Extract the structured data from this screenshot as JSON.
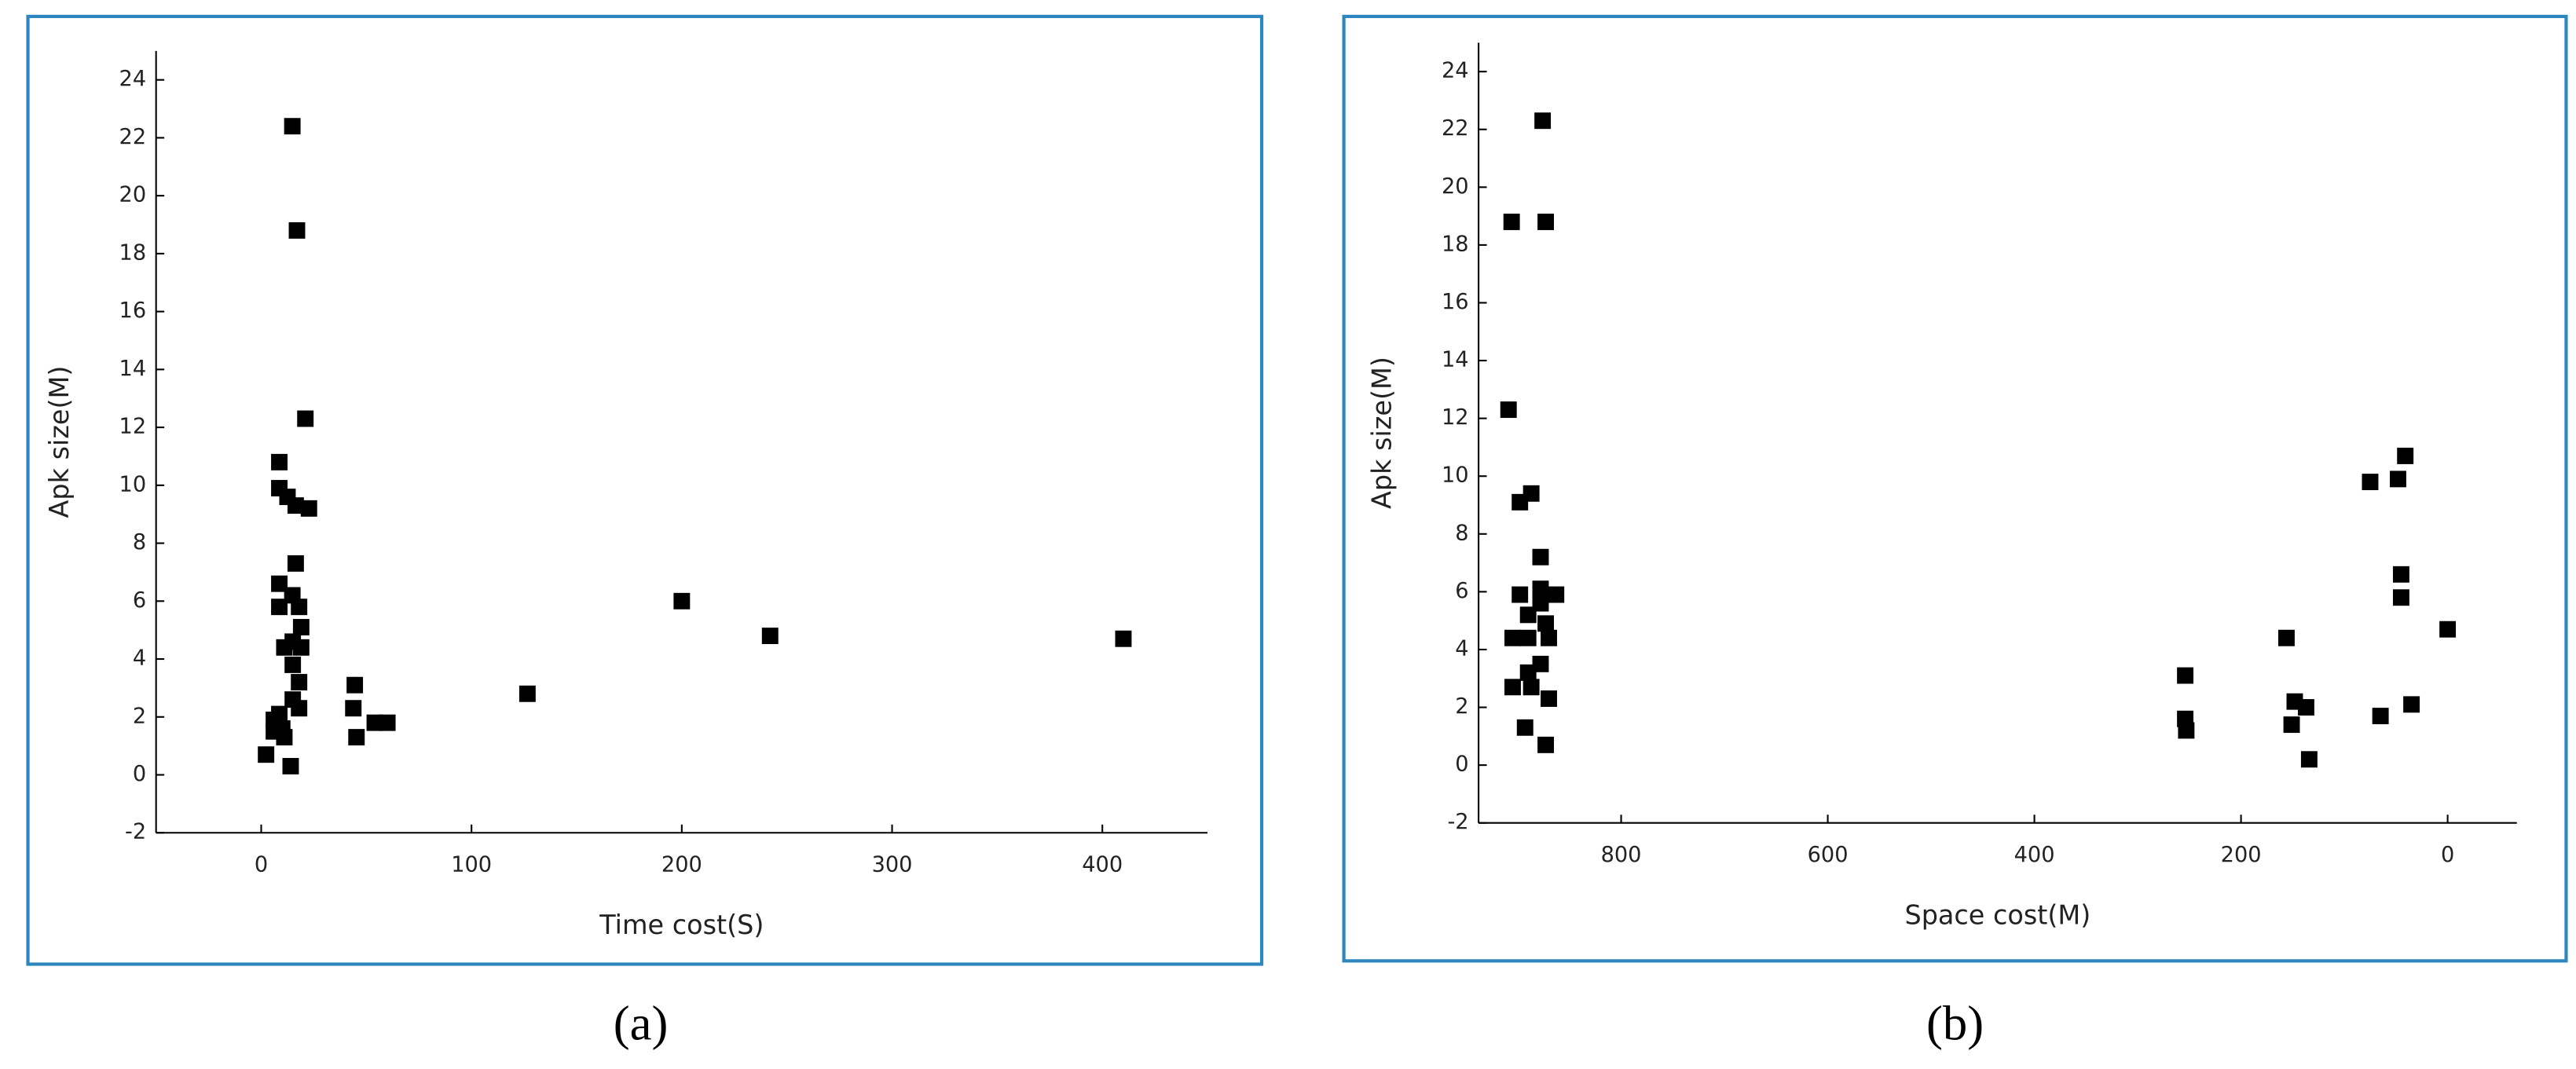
{
  "chart_data": [
    {
      "type": "scatter",
      "caption": "(a)",
      "x_label": "Time cost(S)",
      "y_label": "Apk size(M)",
      "color": "#000000",
      "x": [
        14.8,
        17,
        21,
        8.6,
        8.6,
        12.5,
        16.4,
        22.7,
        16.4,
        8.6,
        14.8,
        8.6,
        18,
        19,
        15,
        11,
        19,
        15,
        18,
        15,
        18,
        8.6,
        6,
        10,
        6,
        11,
        2.3,
        14,
        44.5,
        43.8,
        45.3,
        54,
        60,
        126.6,
        200,
        242,
        410
      ],
      "y": [
        22.4,
        18.8,
        12.3,
        10.8,
        9.9,
        9.6,
        9.3,
        9.2,
        7.3,
        6.6,
        6.2,
        5.8,
        5.8,
        5.1,
        4.6,
        4.4,
        4.4,
        3.8,
        3.2,
        2.6,
        2.3,
        2.1,
        1.9,
        1.6,
        1.5,
        1.3,
        0.7,
        0.3,
        3.1,
        2.3,
        1.3,
        1.8,
        1.8,
        2.8,
        6.0,
        4.8,
        4.7
      ],
      "xlim": [
        -50,
        450
      ],
      "ylim": [
        -2,
        25
      ],
      "xticks": [
        0,
        100,
        200,
        300,
        400
      ],
      "yticks": [
        -2,
        0,
        2,
        4,
        6,
        8,
        10,
        12,
        14,
        16,
        18,
        20,
        22,
        24
      ]
    },
    {
      "type": "scatter",
      "caption": "(b)",
      "x_label": "Space cost(M)",
      "y_label": "Apk size(M)",
      "color": "#000000",
      "x": [
        876,
        906,
        873,
        909,
        898,
        887,
        878,
        878,
        863,
        898,
        878,
        890,
        873,
        905,
        890,
        870,
        878,
        890,
        905,
        887,
        870,
        893,
        873,
        254,
        254,
        253,
        156,
        148,
        137,
        151,
        134,
        75,
        65,
        48,
        41,
        45,
        45,
        35,
        0
      ],
      "y": [
        22.3,
        18.8,
        18.8,
        12.3,
        9.1,
        9.4,
        7.2,
        6.1,
        5.9,
        5.9,
        5.6,
        5.2,
        4.9,
        4.4,
        4.4,
        4.4,
        3.5,
        3.2,
        2.7,
        2.7,
        2.3,
        1.3,
        0.7,
        3.1,
        1.6,
        1.2,
        4.4,
        2.2,
        2.0,
        1.4,
        0.2,
        9.8,
        1.7,
        9.9,
        10.7,
        6.6,
        5.8,
        2.1,
        4.7
      ],
      "xlim": [
        938,
        -67
      ],
      "ylim": [
        -2,
        25
      ],
      "xticks": [
        800,
        600,
        400,
        200,
        0
      ],
      "yticks": [
        -2,
        0,
        2,
        4,
        6,
        8,
        10,
        12,
        14,
        16,
        18,
        20,
        22,
        24
      ]
    }
  ]
}
